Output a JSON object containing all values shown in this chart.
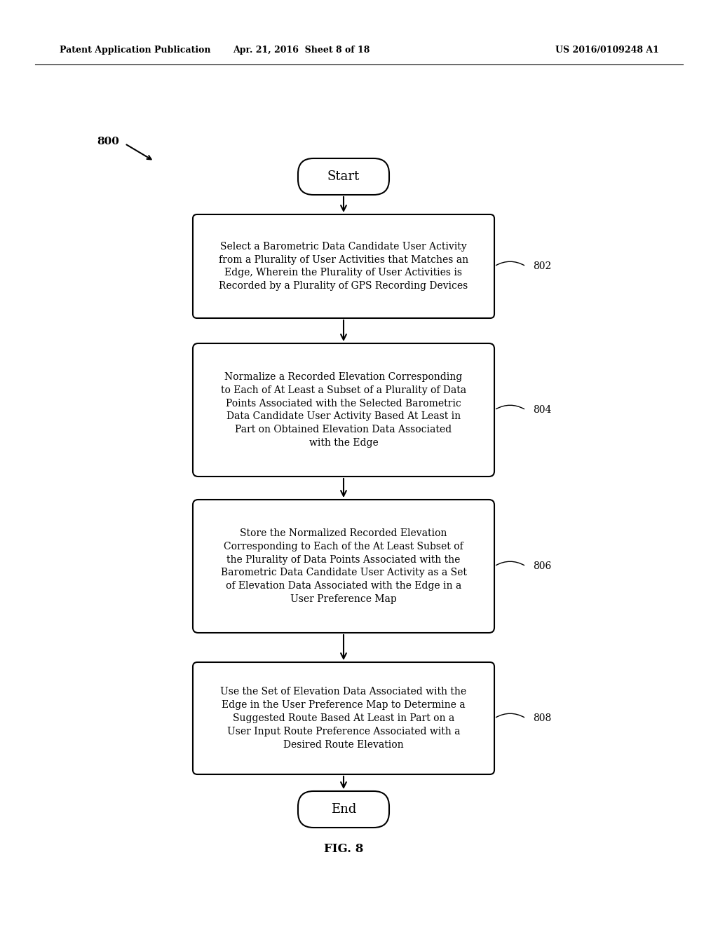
{
  "bg_color": "#ffffff",
  "header_left": "Patent Application Publication",
  "header_mid": "Apr. 21, 2016  Sheet 8 of 18",
  "header_right": "US 2016/0109248 A1",
  "figure_label": "800",
  "start_label": "Start",
  "end_label": "End",
  "fig_caption": "FIG. 8",
  "boxes": [
    {
      "label": "802",
      "text": "Select a Barometric Data Candidate User Activity\nfrom a Plurality of User Activities that Matches an\nEdge, Wherein the Plurality of User Activities is\nRecorded by a Plurality of GPS Recording Devices"
    },
    {
      "label": "804",
      "text": "Normalize a Recorded Elevation Corresponding\nto Each of At Least a Subset of a Plurality of Data\nPoints Associated with the Selected Barometric\nData Candidate User Activity Based At Least in\nPart on Obtained Elevation Data Associated\nwith the Edge"
    },
    {
      "label": "806",
      "text": "Store the Normalized Recorded Elevation\nCorresponding to Each of the At Least Subset of\nthe Plurality of Data Points Associated with the\nBarometric Data Candidate User Activity as a Set\nof Elevation Data Associated with the Edge in a\nUser Preference Map"
    },
    {
      "label": "808",
      "text": "Use the Set of Elevation Data Associated with the\nEdge in the User Preference Map to Determine a\nSuggested Route Based At Least in Part on a\nUser Input Route Preference Associated with a\nDesired Route Elevation"
    }
  ]
}
